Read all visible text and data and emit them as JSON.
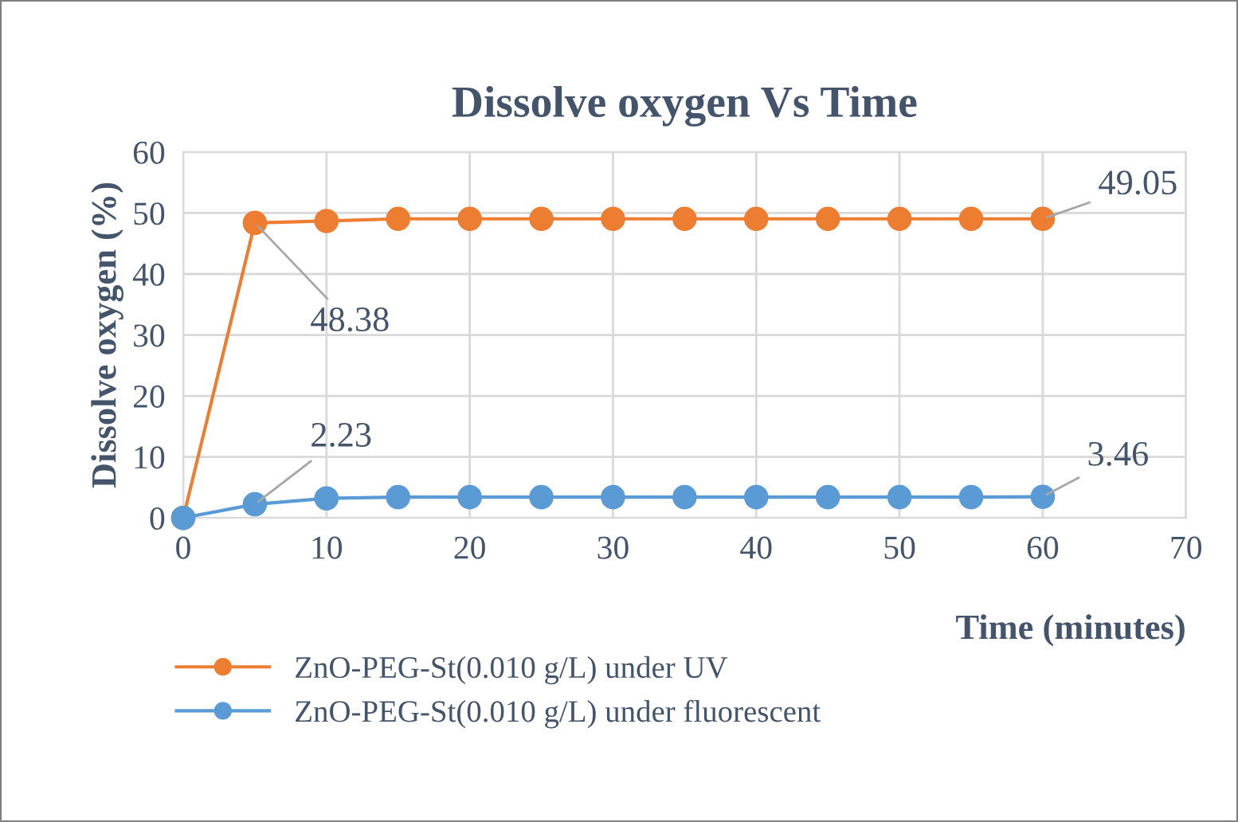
{
  "chart_data": {
    "type": "line",
    "title": "Dissolve oxygen Vs Time",
    "xlabel": "Time (minutes)",
    "ylabel": "Dissolve oxygen (%)",
    "x": [
      0,
      5,
      10,
      15,
      20,
      25,
      30,
      35,
      40,
      45,
      50,
      55,
      60
    ],
    "series": [
      {
        "name": "ZnO-PEG-St(0.010 g/L) under UV",
        "color": "#ed7d31",
        "values": [
          0,
          48.38,
          48.7,
          49.05,
          49.05,
          49.05,
          49.05,
          49.05,
          49.05,
          49.05,
          49.05,
          49.05,
          49.05
        ],
        "value_labels": [
          null,
          "48.38",
          null,
          null,
          null,
          null,
          null,
          null,
          null,
          null,
          null,
          null,
          "49.05"
        ]
      },
      {
        "name": "ZnO-PEG-St(0.010 g/L) under fluorescent",
        "color": "#5b9bd5",
        "values": [
          0,
          2.23,
          3.2,
          3.4,
          3.4,
          3.4,
          3.4,
          3.4,
          3.4,
          3.4,
          3.4,
          3.4,
          3.46
        ],
        "value_labels": [
          null,
          "2.23",
          null,
          null,
          null,
          null,
          null,
          null,
          null,
          null,
          null,
          null,
          "3.46"
        ]
      }
    ],
    "xlim": [
      0,
      70
    ],
    "xticks": [
      0,
      10,
      20,
      30,
      40,
      50,
      60,
      70
    ],
    "ylim": [
      0,
      60
    ],
    "yticks": [
      0,
      10,
      20,
      30,
      40,
      50,
      60
    ],
    "grid": true,
    "legend": "bottom left",
    "marker": "circle",
    "line_style": "solid"
  }
}
